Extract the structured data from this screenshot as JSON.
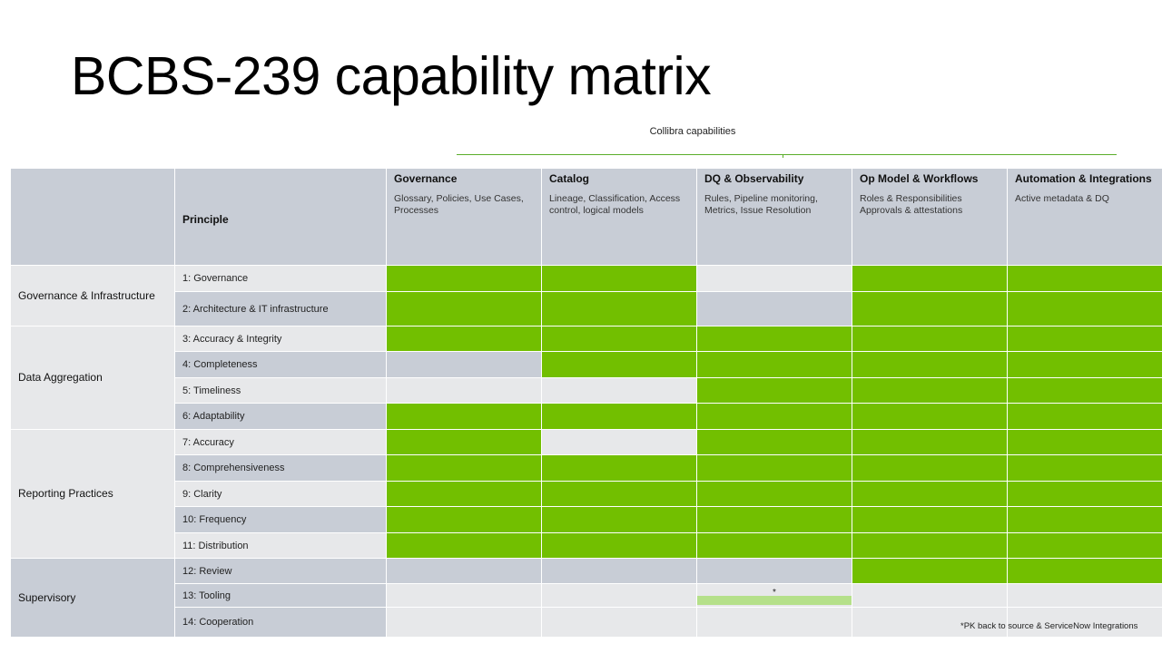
{
  "slide": {
    "title": "BCBS-239 capability matrix",
    "capabilities_label": "Collibra capabilities",
    "footnote": "*PK back to source & ServiceNow Integrations"
  },
  "matrix": {
    "principle_header": "Principle",
    "columns": [
      {
        "name": "Governance",
        "description": "Glossary, Policies, Use Cases, Processes"
      },
      {
        "name": "Catalog",
        "description": "Lineage, Classification, Access control, logical models"
      },
      {
        "name": "DQ & Observability",
        "description": "Rules, Pipeline monitoring, Metrics, Issue Resolution"
      },
      {
        "name": "Op Model & Workflows",
        "description": "Roles & Responsibilities Approvals & attestations"
      },
      {
        "name": "Automation & Integrations",
        "description": "Active metadata & DQ"
      }
    ],
    "groups": [
      {
        "name": "Governance & Infrastructure"
      },
      {
        "name": "Data Aggregation"
      },
      {
        "name": "Reporting Practices"
      },
      {
        "name": "Supervisory"
      }
    ],
    "rows": [
      {
        "principle": "1: Governance",
        "cells": [
          "full",
          "full",
          "none",
          "full",
          "full"
        ]
      },
      {
        "principle": "2: Architecture & IT infrastructure",
        "cells": [
          "full",
          "full",
          "none",
          "full",
          "full"
        ]
      },
      {
        "principle": "3: Accuracy & Integrity",
        "cells": [
          "full",
          "full",
          "full",
          "full",
          "full"
        ]
      },
      {
        "principle": "4: Completeness",
        "cells": [
          "none",
          "full",
          "full",
          "full",
          "full"
        ]
      },
      {
        "principle": "5: Timeliness",
        "cells": [
          "none",
          "none",
          "full",
          "full",
          "full"
        ]
      },
      {
        "principle": "6: Adaptability",
        "cells": [
          "full",
          "full",
          "full",
          "full",
          "full"
        ]
      },
      {
        "principle": "7: Accuracy",
        "cells": [
          "full",
          "none",
          "full",
          "full",
          "full"
        ]
      },
      {
        "principle": "8: Comprehensiveness",
        "cells": [
          "full",
          "full",
          "full",
          "full",
          "full"
        ]
      },
      {
        "principle": "9: Clarity",
        "cells": [
          "full",
          "full",
          "full",
          "full",
          "full"
        ]
      },
      {
        "principle": "10: Frequency",
        "cells": [
          "full",
          "full",
          "full",
          "full",
          "full"
        ]
      },
      {
        "principle": "11: Distribution",
        "cells": [
          "full",
          "full",
          "full",
          "full",
          "full"
        ]
      },
      {
        "principle": "12: Review",
        "cells": [
          "none",
          "none",
          "none",
          "full",
          "full"
        ]
      },
      {
        "principle": "13: Tooling",
        "cells": [
          "none",
          "none",
          "partial",
          "none",
          "none"
        ],
        "partial_mark": "*"
      },
      {
        "principle": "14: Cooperation",
        "cells": [
          "none",
          "none",
          "none",
          "none",
          "none"
        ]
      }
    ],
    "colors": {
      "full": "#72bf00",
      "partial": "#b5e08a",
      "header": "#c8cdd6",
      "light": "#e7e8ea"
    }
  }
}
